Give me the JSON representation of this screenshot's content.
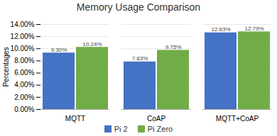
{
  "chart_data": {
    "type": "bar",
    "title": "Memory Usage Comparison",
    "categories": [
      "MQTT",
      "CoAP",
      "MQTT+CoAP"
    ],
    "series": [
      {
        "name": "Pi 2",
        "color": "#4472C4",
        "values": [
          9.3,
          7.83,
          12.63
        ],
        "value_labels": [
          "9.30%",
          "7.83%",
          "12.63%"
        ]
      },
      {
        "name": "Pi Zero",
        "color": "#70AD47",
        "values": [
          10.24,
          9.75,
          12.79
        ],
        "value_labels": [
          "10.24%",
          "9.75%",
          "12.79%"
        ]
      }
    ],
    "ylabel": "Percentages",
    "ylim": [
      0,
      14.0
    ],
    "yticks": [
      {
        "value": 0,
        "label": "0.00%"
      },
      {
        "value": 2.0,
        "label": "2.00%"
      },
      {
        "value": 4.0,
        "label": "4.00%"
      },
      {
        "value": 6.0,
        "label": "6.00%"
      },
      {
        "value": 8.0,
        "label": "8.00%"
      },
      {
        "value": 10.0,
        "label": "10.00%"
      },
      {
        "value": 12.0,
        "label": "12.00%"
      },
      {
        "value": 14.0,
        "label": "14.00%"
      }
    ],
    "grid": true,
    "legend": "bottom",
    "data_labels": true
  }
}
